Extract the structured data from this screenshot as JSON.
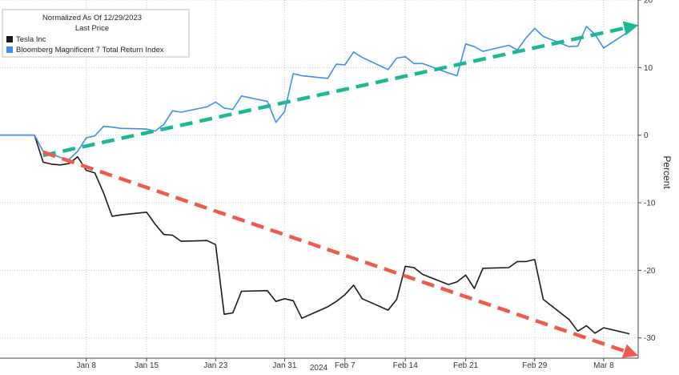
{
  "chart_data": {
    "type": "line",
    "legend": {
      "title": "Normalized As Of 12/29/2023",
      "subtitle": "Last Price",
      "placement": "top-left"
    },
    "ylabel": "Percent",
    "ylim": [
      -33,
      20
    ],
    "y_ticks": [
      20,
      10,
      0,
      -10,
      -20,
      -30
    ],
    "y_tick_labels": [
      "20",
      "10",
      "0",
      "-10",
      "-20",
      "-30"
    ],
    "y_axis_side": "right",
    "grid": true,
    "x_tick_labels": [
      "Jan 8",
      "Jan 15",
      "Jan 23",
      "Jan 31",
      "Feb 7",
      "Feb 14",
      "Feb 21",
      "Feb 29",
      "Mar 8"
    ],
    "x_tick_dates": [
      "2024-01-08",
      "2024-01-15",
      "2024-01-23",
      "2024-01-31",
      "2024-02-07",
      "2024-02-14",
      "2024-02-21",
      "2024-02-29",
      "2024-03-08"
    ],
    "xlim": [
      "2023-12-29",
      "2024-03-12"
    ],
    "x_year_label": "2024",
    "series": [
      {
        "name": "Tesla Inc",
        "color": "#1a1a1a",
        "x": [
          "2023-12-29",
          "2024-01-01",
          "2024-01-02",
          "2024-01-03",
          "2024-01-04",
          "2024-01-05",
          "2024-01-06",
          "2024-01-07",
          "2024-01-08",
          "2024-01-09",
          "2024-01-10",
          "2024-01-11",
          "2024-01-12",
          "2024-01-15",
          "2024-01-16",
          "2024-01-17",
          "2024-01-18",
          "2024-01-19",
          "2024-01-22",
          "2024-01-23",
          "2024-01-24",
          "2024-01-25",
          "2024-01-26",
          "2024-01-29",
          "2024-01-30",
          "2024-01-31",
          "2024-02-01",
          "2024-02-02",
          "2024-02-05",
          "2024-02-06",
          "2024-02-07",
          "2024-02-08",
          "2024-02-09",
          "2024-02-12",
          "2024-02-13",
          "2024-02-14",
          "2024-02-15",
          "2024-02-16",
          "2024-02-19",
          "2024-02-20",
          "2024-02-21",
          "2024-02-22",
          "2024-02-23",
          "2024-02-26",
          "2024-02-27",
          "2024-02-28",
          "2024-02-29",
          "2024-03-01",
          "2024-03-04",
          "2024-03-05",
          "2024-03-06",
          "2024-03-07",
          "2024-03-08",
          "2024-03-11"
        ],
        "values": [
          0,
          0,
          0,
          -4,
          -4.3,
          -4.4,
          -4.2,
          -3.2,
          -5.2,
          -5.6,
          -8.5,
          -12,
          -11.8,
          -11.4,
          -13.2,
          -14.7,
          -14.8,
          -15.7,
          -15.6,
          -16.2,
          -26.5,
          -26.3,
          -23.1,
          -23,
          -24.6,
          -24.2,
          -24.5,
          -27.1,
          -25.4,
          -24.6,
          -23.6,
          -22.2,
          -24.2,
          -25.9,
          -24.3,
          -19.4,
          -19.6,
          -20.6,
          -22.1,
          -21.7,
          -20.7,
          -22.7,
          -19.7,
          -19.6,
          -18.7,
          -18.7,
          -18.4,
          -24.3,
          -27.3,
          -29,
          -28.2,
          -29.3,
          -28.5,
          -29.4
        ]
      },
      {
        "name": "Bloomberg Magnificent 7 Total Return Index",
        "color": "#3d8ef0",
        "x": [
          "2023-12-29",
          "2024-01-01",
          "2024-01-02",
          "2024-01-03",
          "2024-01-04",
          "2024-01-05",
          "2024-01-06",
          "2024-01-07",
          "2024-01-08",
          "2024-01-09",
          "2024-01-10",
          "2024-01-11",
          "2024-01-12",
          "2024-01-15",
          "2024-01-16",
          "2024-01-17",
          "2024-01-18",
          "2024-01-19",
          "2024-01-22",
          "2024-01-23",
          "2024-01-24",
          "2024-01-25",
          "2024-01-26",
          "2024-01-29",
          "2024-01-30",
          "2024-01-31",
          "2024-02-01",
          "2024-02-02",
          "2024-02-05",
          "2024-02-06",
          "2024-02-07",
          "2024-02-08",
          "2024-02-09",
          "2024-02-12",
          "2024-02-13",
          "2024-02-14",
          "2024-02-15",
          "2024-02-16",
          "2024-02-19",
          "2024-02-20",
          "2024-02-21",
          "2024-02-22",
          "2024-02-23",
          "2024-02-26",
          "2024-02-27",
          "2024-02-28",
          "2024-02-29",
          "2024-03-01",
          "2024-03-04",
          "2024-03-05",
          "2024-03-06",
          "2024-03-07",
          "2024-03-08",
          "2024-03-11"
        ],
        "values": [
          0,
          0,
          0,
          -2.4,
          -2.8,
          -3.3,
          -3.6,
          -2.4,
          -0.4,
          -0.1,
          1.3,
          1.2,
          1,
          0.9,
          0.6,
          1.6,
          3.6,
          3.4,
          4.2,
          4.9,
          4,
          3.8,
          5.8,
          5,
          1.9,
          3.5,
          9.1,
          8.8,
          8.4,
          10.5,
          10.4,
          12.3,
          11.5,
          9.7,
          11.4,
          11.6,
          10.6,
          10.6,
          9.2,
          8.8,
          13.5,
          13.1,
          12.4,
          13.3,
          12.6,
          14.4,
          15.8,
          14.6,
          13.1,
          13.2,
          16.1,
          14.9,
          12.9,
          15.4
        ]
      }
    ],
    "annotations": [
      {
        "type": "arrow",
        "color": "#1ab894",
        "style": "dashed",
        "from": {
          "x": "2024-01-03",
          "y": -3
        },
        "to": {
          "x": "2024-03-11",
          "y": 16
        }
      },
      {
        "type": "arrow",
        "color": "#f05a4a",
        "style": "dashed",
        "from": {
          "x": "2024-01-03",
          "y": -2.5
        },
        "to": {
          "x": "2024-03-11",
          "y": -32.2
        }
      }
    ]
  }
}
